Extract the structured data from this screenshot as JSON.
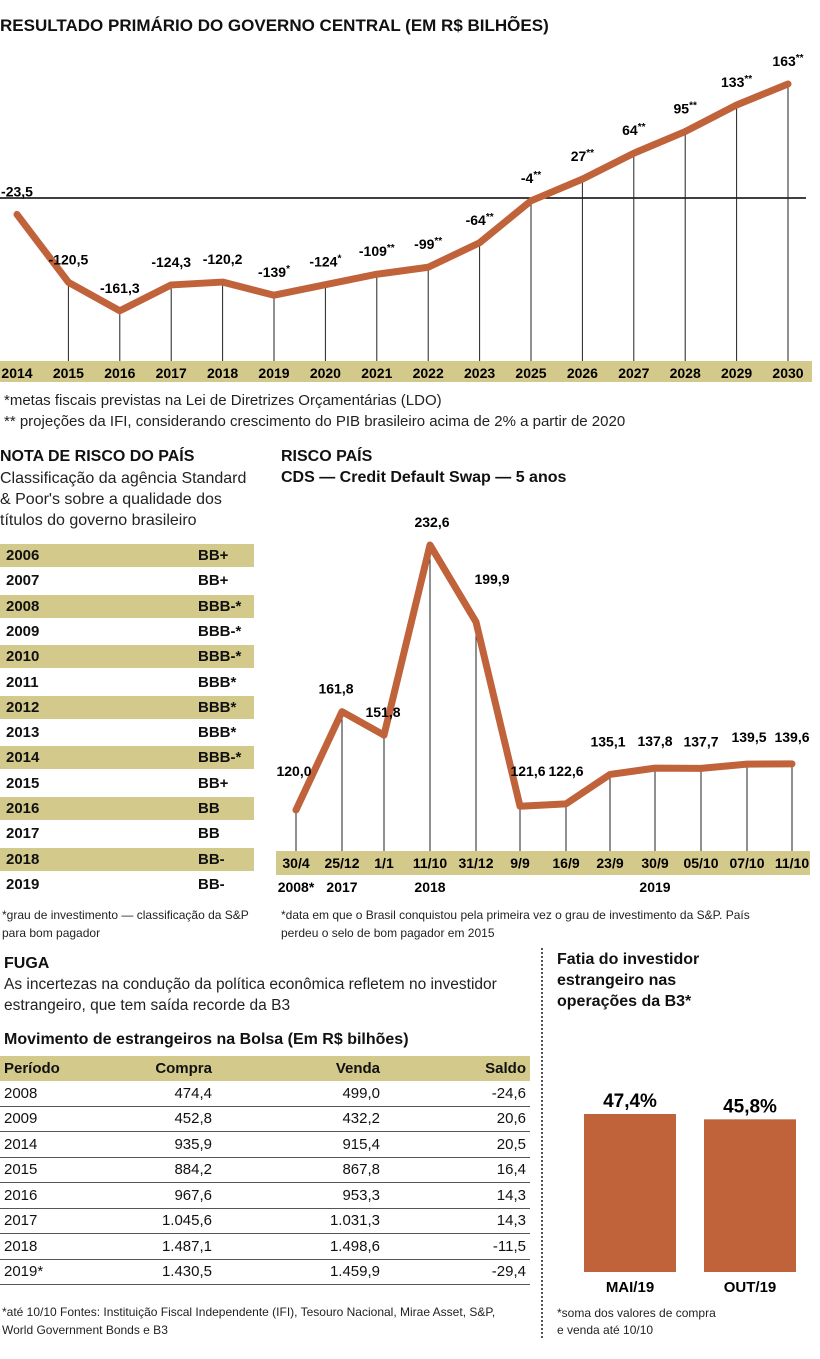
{
  "colors": {
    "line": "#c0633b",
    "band": "#d3c98a",
    "bar": "#c0633b"
  },
  "primary_chart": {
    "title": "RESULTADO PRIMÁRIO DO GOVERNO CENTRAL (EM R$ BILHÕES)",
    "footnote1": "*metas fiscais previstas na Lei de Diretrizes Orçamentárias (LDO)",
    "footnote2": "** projeções da IFI, considerando crescimento do PIB brasileiro acima de 2% a partir de 2020"
  },
  "rating": {
    "title": "NOTA DE RISCO DO PAÍS",
    "subtitle_line1": "Classificação da agência Standard",
    "subtitle_line2": "& Poor's sobre a qualidade dos",
    "subtitle_line3": "títulos do governo brasileiro",
    "rows": [
      {
        "year": "2006",
        "grade": "BB+"
      },
      {
        "year": "2007",
        "grade": "BB+"
      },
      {
        "year": "2008",
        "grade": "BBB-*"
      },
      {
        "year": "2009",
        "grade": "BBB-*"
      },
      {
        "year": "2010",
        "grade": "BBB-*"
      },
      {
        "year": "2011",
        "grade": "BBB*"
      },
      {
        "year": "2012",
        "grade": "BBB*"
      },
      {
        "year": "2013",
        "grade": "BBB*"
      },
      {
        "year": "2014",
        "grade": "BBB-*"
      },
      {
        "year": "2015",
        "grade": "BB+"
      },
      {
        "year": "2016",
        "grade": "BB"
      },
      {
        "year": "2017",
        "grade": "BB"
      },
      {
        "year": "2018",
        "grade": "BB-"
      },
      {
        "year": "2019",
        "grade": "BB-"
      }
    ],
    "footnote1": "*grau de investimento — classificação da S&P",
    "footnote2": "para bom pagador"
  },
  "risk_chart": {
    "title": "RISCO PAÍS",
    "subtitle": "CDS — Credit Default Swap — 5 anos",
    "year_labels": [
      {
        "text": "2008*",
        "cx": 296
      },
      {
        "text": "2017",
        "cx": 342
      },
      {
        "text": "2018",
        "cx": 430
      },
      {
        "text": "2019",
        "cx": 655
      }
    ],
    "footnote1": "*data em que o Brasil conquistou pela primeira vez o grau de investimento da S&P. País",
    "footnote2": "perdeu o selo de bom pagador em 2015"
  },
  "fuga": {
    "title": "FUGA",
    "text_line1": "As incertezas na condução da política econômica refletem no investidor",
    "text_line2": "estrangeiro, que tem saída recorde da B3",
    "table_title": "Movimento de estrangeiros na Bolsa (Em R$ bilhões)",
    "headers": [
      "Período",
      "Compra",
      "Venda",
      "Saldo"
    ],
    "rows": [
      [
        "2008",
        "474,4",
        "499,0",
        "-24,6"
      ],
      [
        "2009",
        "452,8",
        "432,2",
        "20,6"
      ],
      [
        "2014",
        "935,9",
        "915,4",
        "20,5"
      ],
      [
        "2015",
        "884,2",
        "867,8",
        "16,4"
      ],
      [
        "2016",
        "967,6",
        "953,3",
        "14,3"
      ],
      [
        "2017",
        "1.045,6",
        "1.031,3",
        "14,3"
      ],
      [
        "2018",
        "1.487,1",
        "1.498,6",
        "-11,5"
      ],
      [
        "2019*",
        "1.430,5",
        "1.459,9",
        "-29,4"
      ]
    ],
    "footnote1": "*até 10/10 Fontes: Instituição Fiscal Independente (IFI), Tesouro Nacional, Mirae Asset, S&P,",
    "footnote2": "World Government Bonds e B3"
  },
  "share": {
    "title_line1": "Fatia do investidor",
    "title_line2": "estrangeiro nas",
    "title_line3": "operações da B3*",
    "footnote1": "*soma dos valores de compra",
    "footnote2": "e venda até 10/10"
  },
  "chart_data": [
    {
      "type": "line",
      "title": "RESULTADO PRIMÁRIO DO GOVERNO CENTRAL (EM R$ BILHÕES)",
      "categories": [
        "2014",
        "2015",
        "2016",
        "2017",
        "2018",
        "2019",
        "2020",
        "2021",
        "2022",
        "2023",
        "2025",
        "2026",
        "2027",
        "2028",
        "2029",
        "2030"
      ],
      "values": [
        -23.5,
        -120.5,
        -161.3,
        -124.3,
        -120.2,
        -139,
        -124,
        -109,
        -99,
        -64,
        -4,
        27,
        64,
        95,
        133,
        163
      ],
      "labels": [
        "-23,5",
        "-120,5",
        "-161,3",
        "-124,3",
        "-120,2",
        "-139",
        "-124",
        "-109",
        "-99",
        "-64",
        "-4",
        "27",
        "64",
        "95",
        "133",
        "163"
      ],
      "label_suffix": [
        "",
        "",
        "",
        "",
        "",
        "*",
        "*",
        "**",
        "**",
        "**",
        "**",
        "**",
        "**",
        "**",
        "**",
        "**"
      ],
      "reference_line": 0
    },
    {
      "type": "line",
      "title": "RISCO PAÍS",
      "subtitle": "CDS — Credit Default Swap — 5 anos",
      "categories": [
        "30/4",
        "25/12",
        "1/1",
        "11/10",
        "31/12",
        "9/9",
        "16/9",
        "23/9",
        "30/9",
        "05/10",
        "07/10",
        "11/10"
      ],
      "values": [
        120.0,
        161.8,
        151.8,
        232.6,
        199.9,
        121.6,
        122.6,
        135.1,
        137.8,
        137.7,
        139.5,
        139.6
      ],
      "labels": [
        "120,0",
        "161,8",
        "151,8",
        "232,6",
        "199,9",
        "121,6",
        "122,6",
        "135,1",
        "137,8",
        "137,7",
        "139,5",
        "139,6"
      ]
    },
    {
      "type": "bar",
      "title": "Fatia do investidor estrangeiro nas operações da B3*",
      "categories": [
        "MAI/19",
        "OUT/19"
      ],
      "values": [
        47.4,
        45.8
      ],
      "labels": [
        "47,4%",
        "45,8%"
      ]
    }
  ]
}
